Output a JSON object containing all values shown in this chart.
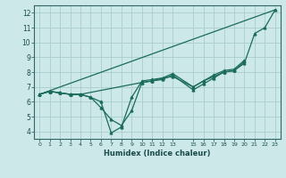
{
  "xlabel": "Humidex (Indice chaleur)",
  "bg_color": "#cce8e8",
  "grid_color": "#aacccc",
  "line_color": "#1a6b5a",
  "xlim": [
    -0.5,
    23.5
  ],
  "ylim": [
    3.5,
    12.5
  ],
  "xtick_positions": [
    0,
    1,
    2,
    3,
    4,
    5,
    6,
    7,
    8,
    9,
    10,
    11,
    12,
    13,
    15,
    16,
    17,
    18,
    19,
    20,
    21,
    22,
    23
  ],
  "xtick_labels": [
    "0",
    "1",
    "2",
    "3",
    "4",
    "5",
    "6",
    "7",
    "8",
    "9",
    "10",
    "11",
    "12",
    "13",
    "15",
    "16",
    "17",
    "18",
    "19",
    "20",
    "21",
    "22",
    "23"
  ],
  "ytick_positions": [
    4,
    5,
    6,
    7,
    8,
    9,
    10,
    11,
    12
  ],
  "ytick_labels": [
    "4",
    "5",
    "6",
    "7",
    "8",
    "9",
    "10",
    "11",
    "12"
  ],
  "series1_x": [
    0,
    1,
    2,
    3,
    4,
    5,
    6,
    7,
    8,
    9,
    10,
    11,
    12,
    13,
    15,
    16,
    17,
    18,
    19,
    20,
    21,
    22,
    23
  ],
  "series1_y": [
    6.5,
    6.7,
    6.6,
    6.5,
    6.5,
    6.3,
    6.0,
    3.9,
    4.3,
    6.3,
    7.4,
    7.5,
    7.6,
    7.7,
    7.0,
    7.4,
    7.7,
    8.0,
    8.1,
    8.6,
    10.6,
    11.0,
    12.2
  ],
  "series2_x": [
    0,
    1,
    2,
    3,
    4,
    5,
    6,
    7,
    8,
    9,
    10,
    11,
    12,
    13,
    15,
    16,
    17,
    18,
    19,
    20
  ],
  "series2_y": [
    6.5,
    6.7,
    6.6,
    6.5,
    6.5,
    6.3,
    5.6,
    4.8,
    4.4,
    5.4,
    7.3,
    7.4,
    7.5,
    7.8,
    6.8,
    7.2,
    7.6,
    8.0,
    8.1,
    8.7
  ],
  "series3_x": [
    0,
    1,
    2,
    3,
    4,
    10,
    11,
    12,
    13,
    15,
    16,
    17,
    18,
    19,
    20
  ],
  "series3_y": [
    6.5,
    6.7,
    6.6,
    6.5,
    6.5,
    7.3,
    7.4,
    7.6,
    7.9,
    7.0,
    7.4,
    7.8,
    8.1,
    8.2,
    8.8
  ],
  "series4_x": [
    0,
    23
  ],
  "series4_y": [
    6.5,
    12.2
  ]
}
